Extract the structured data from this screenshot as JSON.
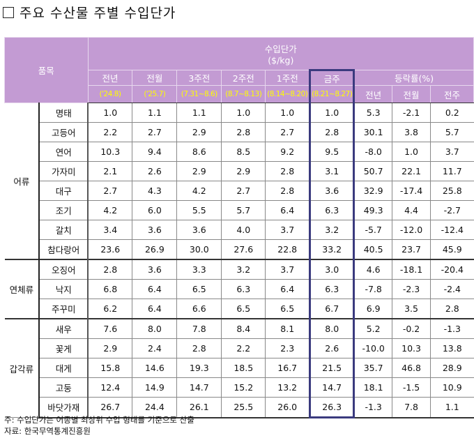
{
  "title": {
    "bullet_icon": "empty-square",
    "text": "주요 수산물 주별 수입단가"
  },
  "table": {
    "header": {
      "item_col": "품목",
      "price_group": "수입단가",
      "price_unit": "($/kg)",
      "rate_group": "등락률(%)",
      "periods": [
        {
          "label": "전년",
          "date": "('24.8)"
        },
        {
          "label": "전월",
          "date": "('25.7)"
        },
        {
          "label": "3주전",
          "date": "(7.31~8.6)"
        },
        {
          "label": "2주전",
          "date": "(8.7~8.13)"
        },
        {
          "label": "1주전",
          "date": "(8.14~8.20)"
        },
        {
          "label": "금주",
          "date": "(8.21~8.27)"
        }
      ],
      "rates": [
        "전년",
        "전월",
        "전주"
      ]
    },
    "groups": [
      {
        "name": "어류",
        "rows": [
          {
            "item": "명태",
            "values": [
              "1.0",
              "1.1",
              "1.1",
              "1.0",
              "1.0",
              "1.0"
            ],
            "rates": [
              "5.3",
              "-2.1",
              "0.2"
            ]
          },
          {
            "item": "고등어",
            "values": [
              "2.2",
              "2.7",
              "2.9",
              "2.8",
              "2.7",
              "2.8"
            ],
            "rates": [
              "30.1",
              "3.8",
              "5.7"
            ]
          },
          {
            "item": "연어",
            "values": [
              "10.3",
              "9.4",
              "8.6",
              "8.5",
              "9.2",
              "9.5"
            ],
            "rates": [
              "-8.0",
              "1.0",
              "3.7"
            ]
          },
          {
            "item": "가자미",
            "values": [
              "2.1",
              "2.6",
              "2.9",
              "2.9",
              "2.8",
              "3.1"
            ],
            "rates": [
              "50.7",
              "22.1",
              "11.7"
            ]
          },
          {
            "item": "대구",
            "values": [
              "2.7",
              "4.3",
              "4.2",
              "2.7",
              "2.8",
              "3.6"
            ],
            "rates": [
              "32.9",
              "-17.4",
              "25.8"
            ]
          },
          {
            "item": "조기",
            "values": [
              "4.2",
              "6.0",
              "5.5",
              "5.7",
              "6.4",
              "6.3"
            ],
            "rates": [
              "49.3",
              "4.4",
              "-2.7"
            ]
          },
          {
            "item": "갈치",
            "values": [
              "3.4",
              "3.6",
              "3.6",
              "4.0",
              "3.7",
              "3.2"
            ],
            "rates": [
              "-5.7",
              "-12.0",
              "-12.4"
            ]
          },
          {
            "item": "참다랑어",
            "values": [
              "23.6",
              "26.9",
              "30.0",
              "27.6",
              "22.8",
              "33.2"
            ],
            "rates": [
              "40.5",
              "23.7",
              "45.9"
            ]
          }
        ]
      },
      {
        "name": "연체류",
        "rows": [
          {
            "item": "오징어",
            "values": [
              "2.8",
              "3.6",
              "3.3",
              "3.2",
              "3.7",
              "3.0"
            ],
            "rates": [
              "4.6",
              "-18.1",
              "-20.4"
            ]
          },
          {
            "item": "낙지",
            "values": [
              "6.8",
              "6.4",
              "6.5",
              "6.3",
              "6.4",
              "6.3"
            ],
            "rates": [
              "-7.8",
              "-2.3",
              "-2.4"
            ]
          },
          {
            "item": "주꾸미",
            "values": [
              "6.2",
              "6.4",
              "6.6",
              "6.5",
              "6.5",
              "6.7"
            ],
            "rates": [
              "6.9",
              "3.5",
              "2.8"
            ]
          }
        ]
      },
      {
        "name": "갑각류",
        "rows": [
          {
            "item": "새우",
            "values": [
              "7.6",
              "8.0",
              "7.8",
              "8.4",
              "8.1",
              "8.0"
            ],
            "rates": [
              "5.2",
              "-0.2",
              "-1.3"
            ]
          },
          {
            "item": "꽃게",
            "values": [
              "2.9",
              "2.4",
              "2.8",
              "2.2",
              "2.3",
              "2.6"
            ],
            "rates": [
              "-10.0",
              "10.3",
              "13.8"
            ]
          },
          {
            "item": "대게",
            "values": [
              "15.8",
              "14.6",
              "19.3",
              "18.5",
              "16.7",
              "21.5"
            ],
            "rates": [
              "35.7",
              "46.8",
              "28.9"
            ]
          },
          {
            "item": "고둥",
            "values": [
              "12.4",
              "14.9",
              "14.7",
              "15.2",
              "13.2",
              "14.7"
            ],
            "rates": [
              "18.1",
              "-1.5",
              "10.9"
            ]
          },
          {
            "item": "바닷가재",
            "values": [
              "26.7",
              "24.4",
              "26.1",
              "25.5",
              "26.0",
              "26.3"
            ],
            "rates": [
              "-1.3",
              "7.8",
              "1.1"
            ]
          }
        ]
      }
    ]
  },
  "footnotes": {
    "note": "주: 수입단가는 어종별 최상위 수입 형태를 기준으로 산출",
    "source": "자료: 한국무역통계진흥원"
  },
  "colors": {
    "header_bg": "#c39bd3",
    "header_text": "#ffffff",
    "date_text": "#ffff00",
    "highlight_border": "#3a3a7e"
  }
}
